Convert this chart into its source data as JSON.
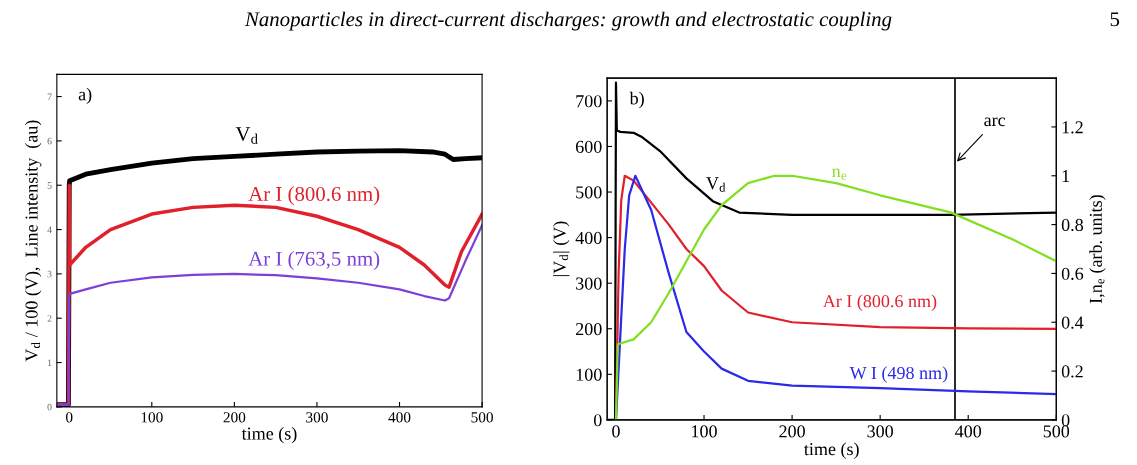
{
  "chart_data": [
    {
      "type": "line",
      "title": "a)",
      "xlabel": "time (s)",
      "ylabel": "V$_{d}$ / 100 (V),  Line intensity  (au)",
      "xlim": [
        -15,
        500
      ],
      "ylim": [
        0,
        7.5
      ],
      "xticks": [
        0,
        100,
        200,
        300,
        400,
        500
      ],
      "yticks": [
        0,
        1,
        2,
        3,
        4,
        5,
        6,
        7
      ],
      "grid": false,
      "annotations": [
        "Nanoparticles in direct-current discharges: growth and electrostatic coupling",
        "5"
      ],
      "series": [
        {
          "name": "V$_{d}$",
          "color": "#000000",
          "x": [
            -15,
            -1,
            0,
            0.5,
            20,
            50,
            100,
            150,
            200,
            250,
            300,
            350,
            400,
            440,
            455,
            465,
            480,
            500
          ],
          "values": [
            0.05,
            0.05,
            5.0,
            5.1,
            5.25,
            5.35,
            5.5,
            5.6,
            5.65,
            5.7,
            5.75,
            5.77,
            5.78,
            5.75,
            5.7,
            5.58,
            5.6,
            5.62
          ]
        },
        {
          "name": "Ar I (800.6 nm)",
          "color": "#e0202a",
          "x": [
            -15,
            -1,
            0,
            0.5,
            20,
            50,
            100,
            150,
            200,
            250,
            300,
            350,
            400,
            430,
            455,
            460,
            475,
            500
          ],
          "values": [
            0.05,
            0.05,
            5.0,
            3.2,
            3.6,
            4.0,
            4.35,
            4.5,
            4.55,
            4.5,
            4.3,
            4.0,
            3.6,
            3.2,
            2.75,
            2.7,
            3.5,
            4.35
          ]
        },
        {
          "name": "Ar I (763,5 nm)",
          "color": "#7a40d8",
          "x": [
            -15,
            -1,
            0,
            0.5,
            20,
            50,
            100,
            150,
            200,
            250,
            300,
            350,
            400,
            430,
            455,
            460,
            480,
            500
          ],
          "values": [
            0.05,
            0.05,
            2.5,
            2.55,
            2.65,
            2.8,
            2.92,
            2.98,
            3.0,
            2.97,
            2.9,
            2.8,
            2.65,
            2.5,
            2.4,
            2.45,
            3.3,
            4.1
          ]
        }
      ]
    },
    {
      "type": "line",
      "title": "b)",
      "xlabel": "time (s)",
      "ylabel": "|V$_{d}$| (V)",
      "y2label": "I,n$_{e}$ (arb. units)",
      "xlim": [
        -10,
        500
      ],
      "ylim": [
        0,
        750
      ],
      "y2lim": [
        0,
        1.4
      ],
      "xticks": [
        0,
        100,
        200,
        300,
        400,
        500
      ],
      "yticks": [
        0,
        100,
        200,
        300,
        400,
        500,
        600,
        700
      ],
      "y2ticks": [
        0,
        0.2,
        0.4,
        0.6,
        0.8,
        1,
        1.2
      ],
      "grid": false,
      "ref_lines": [
        {
          "axis": "x",
          "value": 385,
          "label": "arc",
          "color": "#000000"
        }
      ],
      "series": [
        {
          "name": "V$_{d}$",
          "color": "#000000",
          "x": [
            -10,
            -1,
            0,
            1,
            5,
            20,
            30,
            50,
            80,
            110,
            140,
            200,
            300,
            380,
            500
          ],
          "values": [
            0,
            0,
            740,
            635,
            632,
            630,
            620,
            590,
            530,
            480,
            455,
            450,
            450,
            450,
            455
          ]
        },
        {
          "name": "Ar I (800.6 nm)",
          "color": "#e0202a",
          "axis": "y2",
          "x": [
            0,
            3,
            6,
            10,
            20,
            40,
            60,
            80,
            100,
            120,
            150,
            200,
            300,
            400,
            500
          ],
          "values": [
            0,
            0.6,
            0.9,
            1.0,
            0.98,
            0.89,
            0.8,
            0.7,
            0.63,
            0.53,
            0.44,
            0.4,
            0.38,
            0.375,
            0.373
          ]
        },
        {
          "name": "W I (498 nm)",
          "color": "#2a2ae8",
          "axis": "y2",
          "x": [
            0,
            5,
            10,
            15,
            22,
            40,
            60,
            80,
            100,
            120,
            150,
            200,
            300,
            400,
            500
          ],
          "values": [
            0,
            0.35,
            0.7,
            0.92,
            1.0,
            0.86,
            0.6,
            0.36,
            0.28,
            0.21,
            0.16,
            0.14,
            0.13,
            0.117,
            0.106
          ]
        },
        {
          "name": "n$_{e}$",
          "color": "#80e020",
          "axis": "y2",
          "x": [
            0,
            2,
            20,
            40,
            60,
            80,
            100,
            120,
            150,
            180,
            200,
            250,
            300,
            380,
            450,
            500
          ],
          "values": [
            0,
            0.31,
            0.33,
            0.4,
            0.52,
            0.65,
            0.78,
            0.88,
            0.97,
            1.0,
            1.0,
            0.97,
            0.92,
            0.85,
            0.74,
            0.65
          ]
        }
      ]
    }
  ]
}
